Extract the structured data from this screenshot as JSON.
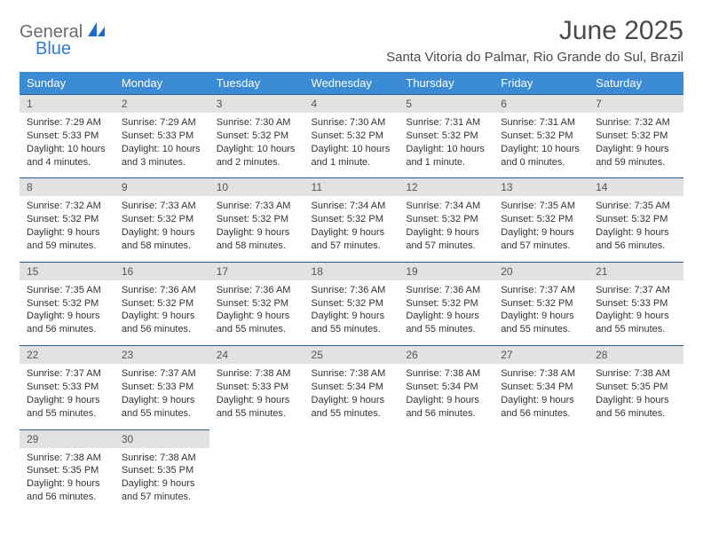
{
  "brand": {
    "word1": "General",
    "word2": "Blue",
    "color_general": "#6b6b6b",
    "color_blue": "#2e7cd1",
    "icon_fill": "#1f6fc0"
  },
  "header": {
    "month_title": "June 2025",
    "location": "Santa Vitoria do Palmar, Rio Grande do Sul, Brazil"
  },
  "style": {
    "header_bg": "#3b8bd4",
    "header_text": "#ffffff",
    "daynum_bg": "#e2e2e2",
    "daynum_border": "#2a5d8f",
    "body_text": "#333333",
    "title_fontsize": 30,
    "location_fontsize": 15,
    "th_fontsize": 13,
    "cell_fontsize": 11
  },
  "calendar": {
    "day_headers": [
      "Sunday",
      "Monday",
      "Tuesday",
      "Wednesday",
      "Thursday",
      "Friday",
      "Saturday"
    ],
    "weeks": [
      [
        {
          "num": "1",
          "sunrise": "7:29 AM",
          "sunset": "5:33 PM",
          "daylight": "10 hours and 4 minutes."
        },
        {
          "num": "2",
          "sunrise": "7:29 AM",
          "sunset": "5:33 PM",
          "daylight": "10 hours and 3 minutes."
        },
        {
          "num": "3",
          "sunrise": "7:30 AM",
          "sunset": "5:32 PM",
          "daylight": "10 hours and 2 minutes."
        },
        {
          "num": "4",
          "sunrise": "7:30 AM",
          "sunset": "5:32 PM",
          "daylight": "10 hours and 1 minute."
        },
        {
          "num": "5",
          "sunrise": "7:31 AM",
          "sunset": "5:32 PM",
          "daylight": "10 hours and 1 minute."
        },
        {
          "num": "6",
          "sunrise": "7:31 AM",
          "sunset": "5:32 PM",
          "daylight": "10 hours and 0 minutes."
        },
        {
          "num": "7",
          "sunrise": "7:32 AM",
          "sunset": "5:32 PM",
          "daylight": "9 hours and 59 minutes."
        }
      ],
      [
        {
          "num": "8",
          "sunrise": "7:32 AM",
          "sunset": "5:32 PM",
          "daylight": "9 hours and 59 minutes."
        },
        {
          "num": "9",
          "sunrise": "7:33 AM",
          "sunset": "5:32 PM",
          "daylight": "9 hours and 58 minutes."
        },
        {
          "num": "10",
          "sunrise": "7:33 AM",
          "sunset": "5:32 PM",
          "daylight": "9 hours and 58 minutes."
        },
        {
          "num": "11",
          "sunrise": "7:34 AM",
          "sunset": "5:32 PM",
          "daylight": "9 hours and 57 minutes."
        },
        {
          "num": "12",
          "sunrise": "7:34 AM",
          "sunset": "5:32 PM",
          "daylight": "9 hours and 57 minutes."
        },
        {
          "num": "13",
          "sunrise": "7:35 AM",
          "sunset": "5:32 PM",
          "daylight": "9 hours and 57 minutes."
        },
        {
          "num": "14",
          "sunrise": "7:35 AM",
          "sunset": "5:32 PM",
          "daylight": "9 hours and 56 minutes."
        }
      ],
      [
        {
          "num": "15",
          "sunrise": "7:35 AM",
          "sunset": "5:32 PM",
          "daylight": "9 hours and 56 minutes."
        },
        {
          "num": "16",
          "sunrise": "7:36 AM",
          "sunset": "5:32 PM",
          "daylight": "9 hours and 56 minutes."
        },
        {
          "num": "17",
          "sunrise": "7:36 AM",
          "sunset": "5:32 PM",
          "daylight": "9 hours and 55 minutes."
        },
        {
          "num": "18",
          "sunrise": "7:36 AM",
          "sunset": "5:32 PM",
          "daylight": "9 hours and 55 minutes."
        },
        {
          "num": "19",
          "sunrise": "7:36 AM",
          "sunset": "5:32 PM",
          "daylight": "9 hours and 55 minutes."
        },
        {
          "num": "20",
          "sunrise": "7:37 AM",
          "sunset": "5:32 PM",
          "daylight": "9 hours and 55 minutes."
        },
        {
          "num": "21",
          "sunrise": "7:37 AM",
          "sunset": "5:33 PM",
          "daylight": "9 hours and 55 minutes."
        }
      ],
      [
        {
          "num": "22",
          "sunrise": "7:37 AM",
          "sunset": "5:33 PM",
          "daylight": "9 hours and 55 minutes."
        },
        {
          "num": "23",
          "sunrise": "7:37 AM",
          "sunset": "5:33 PM",
          "daylight": "9 hours and 55 minutes."
        },
        {
          "num": "24",
          "sunrise": "7:38 AM",
          "sunset": "5:33 PM",
          "daylight": "9 hours and 55 minutes."
        },
        {
          "num": "25",
          "sunrise": "7:38 AM",
          "sunset": "5:34 PM",
          "daylight": "9 hours and 55 minutes."
        },
        {
          "num": "26",
          "sunrise": "7:38 AM",
          "sunset": "5:34 PM",
          "daylight": "9 hours and 56 minutes."
        },
        {
          "num": "27",
          "sunrise": "7:38 AM",
          "sunset": "5:34 PM",
          "daylight": "9 hours and 56 minutes."
        },
        {
          "num": "28",
          "sunrise": "7:38 AM",
          "sunset": "5:35 PM",
          "daylight": "9 hours and 56 minutes."
        }
      ],
      [
        {
          "num": "29",
          "sunrise": "7:38 AM",
          "sunset": "5:35 PM",
          "daylight": "9 hours and 56 minutes."
        },
        {
          "num": "30",
          "sunrise": "7:38 AM",
          "sunset": "5:35 PM",
          "daylight": "9 hours and 57 minutes."
        },
        null,
        null,
        null,
        null,
        null
      ]
    ],
    "labels": {
      "sunrise": "Sunrise:",
      "sunset": "Sunset:",
      "daylight": "Daylight:"
    }
  }
}
